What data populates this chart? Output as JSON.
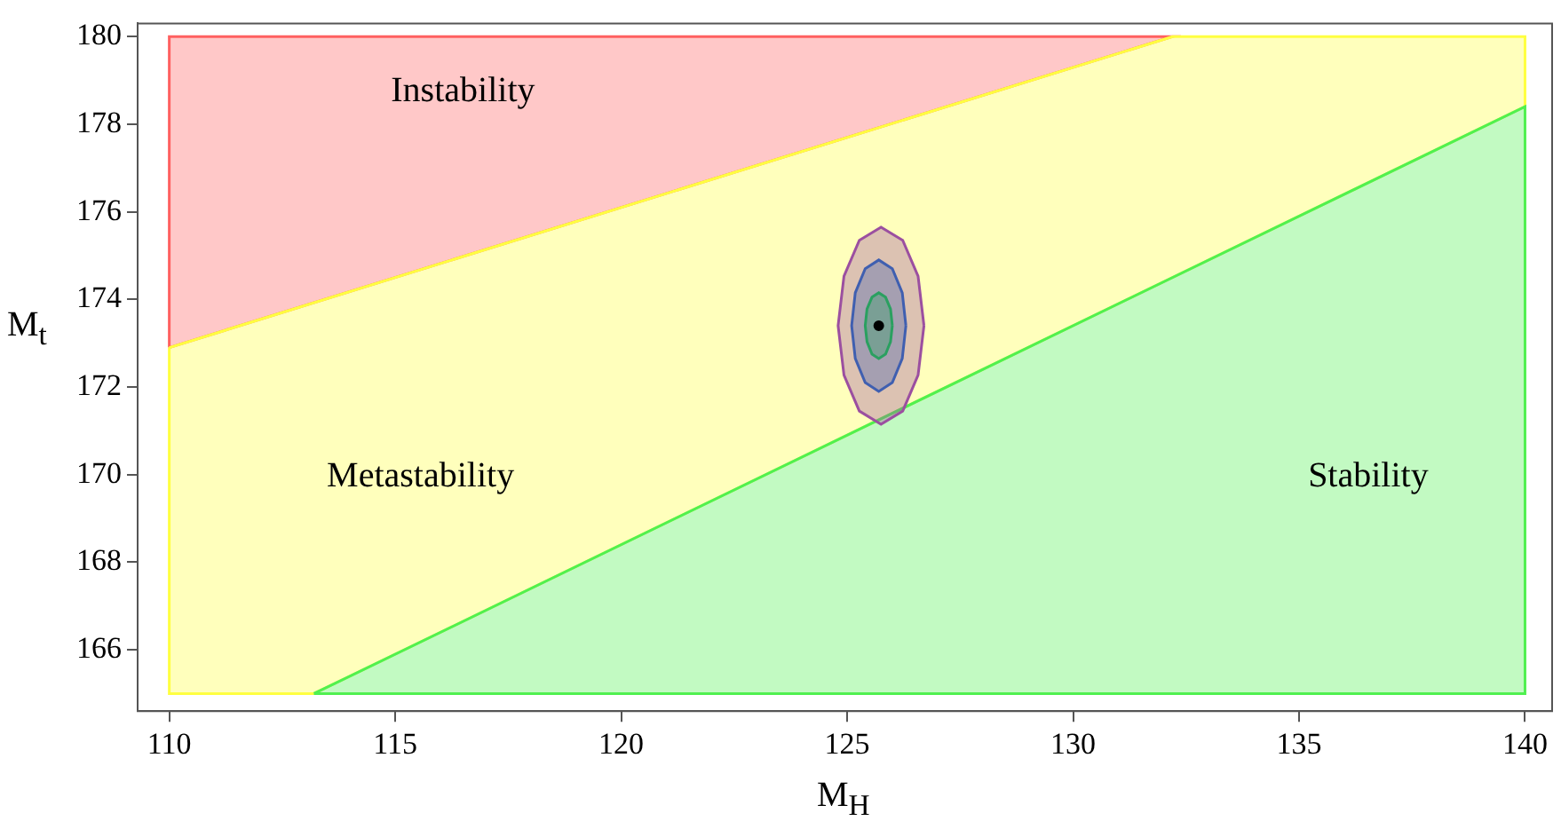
{
  "chart_data": {
    "type": "area",
    "xlabel": "M$_{H}$",
    "ylabel": "M$_{t}$",
    "xlim": [
      109.3,
      140.6
    ],
    "ylim": [
      164.6,
      180.3
    ],
    "xticks": [
      110,
      115,
      120,
      125,
      130,
      135,
      140
    ],
    "yticks": [
      166,
      168,
      170,
      172,
      174,
      176,
      178,
      180
    ],
    "grid": false,
    "legend": false,
    "series": [
      {
        "color": "#ff6060",
        "x": [
          110,
          110,
          132.2,
          110
        ],
        "values": [
          172.9,
          180,
          180,
          172.9
        ]
      },
      {
        "color": "#ffff40",
        "x": [
          110,
          132.2,
          140,
          140,
          113.2,
          110,
          110
        ],
        "values": [
          172.9,
          180,
          180,
          178.4,
          165,
          165,
          172.9
        ]
      },
      {
        "color": "#50f050",
        "x": [
          113.2,
          140,
          140,
          113.2
        ],
        "values": [
          165,
          178.4,
          165,
          165
        ]
      },
      {
        "color": "#9b4fa0",
        "x": [
          126.7,
          126.57,
          126.23,
          125.75,
          125.27,
          124.93,
          124.8,
          124.93,
          125.27,
          125.75,
          126.23,
          126.57,
          126.7
        ],
        "values": [
          173.4,
          174.53,
          175.35,
          175.65,
          175.35,
          174.53,
          173.4,
          172.27,
          171.45,
          171.15,
          171.45,
          172.27,
          173.4
        ]
      },
      {
        "color": "#3f5fb0",
        "x": [
          126.3,
          126.22,
          126.0,
          125.7,
          125.4,
          125.18,
          125.1,
          125.18,
          125.4,
          125.7,
          126.0,
          126.22,
          126.3
        ],
        "values": [
          173.4,
          174.15,
          174.7,
          174.9,
          174.7,
          174.15,
          173.4,
          172.65,
          172.1,
          171.9,
          172.1,
          172.65,
          173.4
        ]
      },
      {
        "color": "#2aa060",
        "x": [
          126.0,
          125.96,
          125.85,
          125.7,
          125.55,
          125.44,
          125.4,
          125.44,
          125.55,
          125.7,
          125.85,
          125.96,
          126.0
        ],
        "values": [
          173.4,
          173.78,
          174.05,
          174.15,
          174.05,
          173.78,
          173.4,
          173.03,
          172.75,
          172.65,
          172.75,
          173.03,
          173.4
        ]
      },
      {
        "type": "scatter",
        "color": "#000000",
        "marker": "circle",
        "x": [
          125.7
        ],
        "values": [
          173.4
        ]
      }
    ],
    "annotations": [
      "Instability",
      "Metastability",
      "Stability"
    ]
  }
}
